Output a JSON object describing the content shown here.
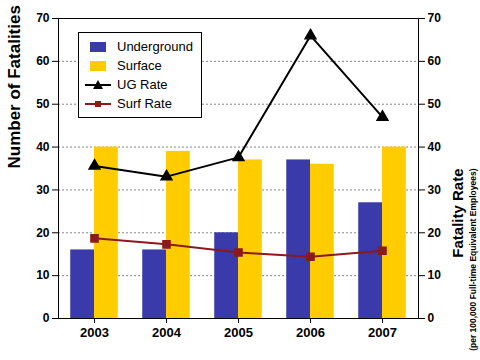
{
  "chart_data": {
    "type": "bar",
    "categories": [
      "2003",
      "2004",
      "2005",
      "2006",
      "2007"
    ],
    "ylabel": "Number of Fatalities",
    "y2label": "Fatality Rate",
    "y2label_note": "(per 100,000 Full-time Equivalent Employees)",
    "ylim": [
      0,
      70
    ],
    "yticks": [
      0,
      10,
      20,
      30,
      40,
      50,
      60,
      70
    ],
    "y2lim": [
      0,
      70
    ],
    "y2ticks": [
      0,
      10,
      20,
      30,
      40,
      50,
      60,
      70
    ],
    "grid": true,
    "legend": "upper left",
    "series": [
      {
        "name": "Underground",
        "type": "bar",
        "color": "#3a3aaa",
        "values": [
          16,
          16,
          20,
          37,
          27
        ]
      },
      {
        "name": "Surface",
        "type": "bar",
        "color": "#ffcc00",
        "values": [
          40,
          39,
          37,
          36,
          40
        ]
      },
      {
        "name": "UG Rate",
        "type": "line",
        "axis": "y2",
        "color": "#000000",
        "marker": "triangle",
        "values": [
          35.6,
          33.1,
          37.6,
          66,
          47
        ]
      },
      {
        "name": "Surf Rate",
        "type": "line",
        "axis": "y2",
        "color": "#8b1a1a",
        "marker": "square",
        "values": [
          18.7,
          17.3,
          15.4,
          14.4,
          15.8
        ]
      }
    ]
  }
}
